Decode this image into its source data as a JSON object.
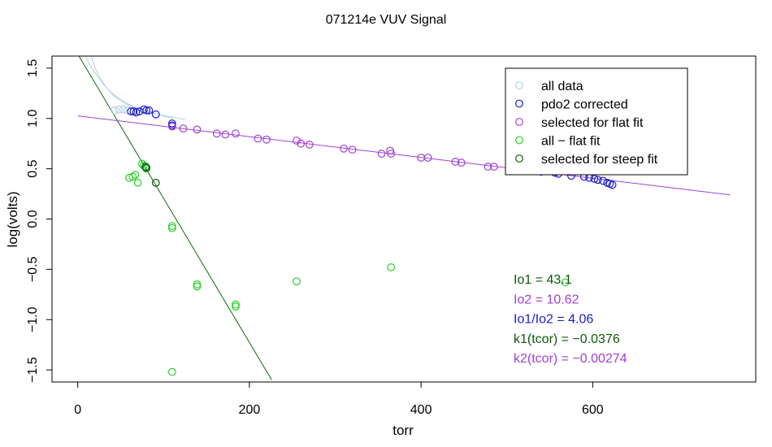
{
  "colors": {
    "all_data": "#b5cfe8",
    "corrected": "#1c1cc8",
    "flat": "#a040d8",
    "allflat": "#28d028",
    "steep": "#0a5a0a",
    "steep_line": "#0a6a0a",
    "flat_line": "#a040d8"
  },
  "chart_data": {
    "type": "scatter",
    "title": "071214e   VUV Signal",
    "xlabel": "torr",
    "ylabel": "log(volts)",
    "xlim": [
      -30,
      790
    ],
    "ylim": [
      -1.62,
      1.62
    ],
    "xticks": [
      0,
      200,
      400,
      600
    ],
    "yticks": [
      1.5,
      1.0,
      0.5,
      0.0,
      -0.5,
      -1.0,
      -1.5
    ],
    "ytick_labels": [
      "1.5",
      "1.0",
      "0.5",
      "0.0",
      "−0.5",
      "−1.0",
      "−1.5"
    ],
    "legend": {
      "position": "top-right",
      "entries": [
        {
          "label": "all data",
          "key": "all_data"
        },
        {
          "label": "pdo2 corrected",
          "key": "corrected"
        },
        {
          "label": "selected for flat fit",
          "key": "flat"
        },
        {
          "label": "all − flat fit",
          "key": "allflat"
        },
        {
          "label": "selected for steep fit",
          "key": "steep"
        }
      ]
    },
    "lines": [
      {
        "key": "steep_line",
        "x": [
          0,
          226
        ],
        "y": [
          1.64,
          -1.6
        ],
        "curve": "straight"
      },
      {
        "key": "flat_line",
        "x": [
          0,
          760
        ],
        "y": [
          1.025,
          0.24
        ],
        "curve": "straight"
      },
      {
        "key": "all_data",
        "x": [
          8,
          15,
          22,
          30,
          40,
          50,
          60,
          75,
          90,
          110
        ],
        "y": [
          1.64,
          1.52,
          1.43,
          1.34,
          1.25,
          1.19,
          1.14,
          1.09,
          1.05,
          1.0
        ],
        "curve": "smooth"
      },
      {
        "key": "all_data",
        "x": [
          15,
          22,
          30,
          38,
          46,
          55,
          65,
          80,
          100,
          125
        ],
        "y": [
          1.64,
          1.47,
          1.35,
          1.26,
          1.2,
          1.15,
          1.11,
          1.07,
          1.03,
          0.99
        ],
        "curve": "smooth"
      }
    ],
    "series": [
      {
        "key": "all_data",
        "points": [
          [
            43,
            1.08
          ],
          [
            48,
            1.09
          ],
          [
            53,
            1.09
          ],
          [
            58,
            1.08
          ]
        ]
      },
      {
        "key": "corrected",
        "points": [
          [
            62,
            1.07
          ],
          [
            65,
            1.07
          ],
          [
            68,
            1.06
          ],
          [
            72,
            1.07
          ],
          [
            77,
            1.09
          ],
          [
            80,
            1.08
          ],
          [
            83,
            1.08
          ],
          [
            91,
            1.04
          ],
          [
            110,
            0.95
          ],
          [
            110,
            0.93
          ],
          [
            556,
            0.46
          ],
          [
            560,
            0.45
          ],
          [
            575,
            0.43
          ],
          [
            590,
            0.42
          ],
          [
            596,
            0.41
          ],
          [
            602,
            0.4
          ],
          [
            606,
            0.39
          ],
          [
            612,
            0.38
          ],
          [
            617,
            0.36
          ],
          [
            620,
            0.35
          ],
          [
            623,
            0.34
          ]
        ]
      },
      {
        "key": "flat",
        "points": [
          [
            110,
            0.92
          ],
          [
            123,
            0.9
          ],
          [
            139,
            0.89
          ],
          [
            162,
            0.85
          ],
          [
            172,
            0.84
          ],
          [
            184,
            0.85
          ],
          [
            210,
            0.8
          ],
          [
            220,
            0.79
          ],
          [
            255,
            0.78
          ],
          [
            260,
            0.75
          ],
          [
            270,
            0.74
          ],
          [
            310,
            0.7
          ],
          [
            320,
            0.69
          ],
          [
            354,
            0.65
          ],
          [
            364,
            0.68
          ],
          [
            365,
            0.65
          ],
          [
            400,
            0.61
          ],
          [
            408,
            0.61
          ],
          [
            440,
            0.57
          ],
          [
            447,
            0.56
          ],
          [
            478,
            0.52
          ],
          [
            485,
            0.52
          ],
          [
            520,
            0.5
          ],
          [
            528,
            0.48
          ],
          [
            540,
            0.47
          ]
        ]
      },
      {
        "key": "allflat",
        "points": [
          [
            60,
            0.41
          ],
          [
            64,
            0.42
          ],
          [
            67,
            0.44
          ],
          [
            70,
            0.36
          ],
          [
            75,
            0.55
          ],
          [
            77,
            0.53
          ],
          [
            80,
            0.5
          ],
          [
            110,
            -0.07
          ],
          [
            110,
            -0.09
          ],
          [
            139,
            -0.65
          ],
          [
            139,
            -0.67
          ],
          [
            184,
            -0.85
          ],
          [
            184,
            -0.87
          ],
          [
            255,
            -0.62
          ],
          [
            365,
            -0.48
          ],
          [
            110,
            -1.52
          ],
          [
            568,
            -0.63
          ]
        ]
      },
      {
        "key": "steep",
        "points": [
          [
            79,
            0.52
          ],
          [
            80,
            0.51
          ],
          [
            91,
            0.36
          ]
        ]
      }
    ],
    "annotations": [
      {
        "text": "Io1 =  43.1",
        "key": "steep"
      },
      {
        "text": "Io2 =  10.62",
        "key": "flat"
      },
      {
        "text": "Io1/Io2 =  4.06",
        "key": "corrected"
      },
      {
        "text": "k1(tcor) =  −0.0376",
        "key": "steep"
      },
      {
        "text": "k2(tcor) =  −0.00274",
        "key": "flat"
      }
    ]
  }
}
